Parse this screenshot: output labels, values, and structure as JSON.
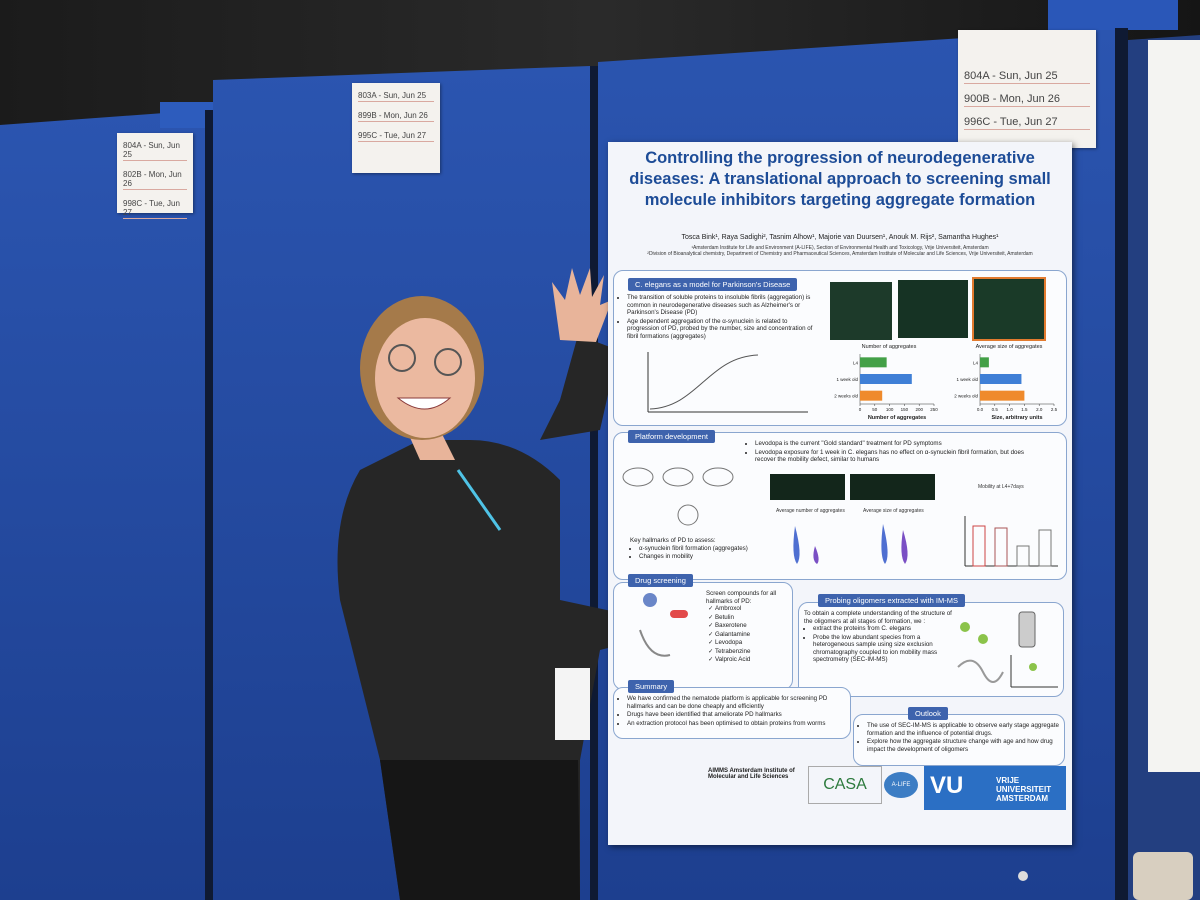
{
  "schedule_notes": [
    [
      "804A - Sun, Jun 25",
      "802B - Mon, Jun 26",
      "998C - Tue, Jun 27"
    ],
    [
      "803A - Sun, Jun 25",
      "899B - Mon, Jun 26",
      "995C - Tue, Jun 27"
    ],
    [
      "804A - Sun, Jun 25",
      "900B - Mon, Jun 26",
      "996C - Tue, Jun 27"
    ]
  ],
  "poster": {
    "title": "Controlling the progression of neurodegenerative diseases: A translational approach to screening small molecule inhibitors targeting aggregate formation",
    "authors": "Tosca Bink¹, Raya Sadighi², Tasnim Alhow¹, Majorie van Duursen¹, Anouk M. Rijs², Samantha Hughes¹",
    "affiliations": [
      "¹Amsterdam Institute for Life and Environment (A-LIFE), Section of Environmental Health and Toxicology, Vrije Universiteit, Amsterdam",
      "²Division of Bioanalytical chemistry, Department of Chemistry and Pharmaceutical Sciences, Amsterdam Institute of Molecular and Life Sciences, Vrije Universiteit, Amsterdam"
    ],
    "sections": [
      {
        "heading": "C. elegans as a model for Parkinson's Disease",
        "items": [
          "The transition of soluble proteins to insoluble fibrils (aggregation) is common in neurodegenerative diseases such as Alzheimer's or Parkinson's Disease (PD)",
          "Age dependent aggregation of the α-synuclein is related to progression of PD, probed by the number, size and concentration of fibril formations (aggregates)"
        ]
      },
      {
        "heading": "Platform development",
        "items": [
          "Levodopa is the current \"Gold standard\" treatment for PD symptoms",
          "Levodopa exposure for 1 week in C. elegans has no effect on α-synuclein fibril formation, but does recover the mobility defect, similar to humans"
        ],
        "intro": "Key hallmarks of PD to assess:",
        "hallmarks": [
          "α-synuclein fibril formation (aggregates)",
          "Changes in mobility"
        ],
        "plot_labels": [
          "Average number of aggregates",
          "Average size of aggregates",
          "Mobility at L4+7days"
        ]
      },
      {
        "heading": "Drug screening",
        "intro": "Screen compounds for all hallmarks of PD:",
        "items": [
          "Ambroxol",
          "Betulin",
          "Baxerotene",
          "Galantamine",
          "Levodopa",
          "Tetrabenzine",
          "Valproic Acid"
        ]
      },
      {
        "heading": "Probing oligomers extracted with IM-MS",
        "intro": "To obtain a complete understanding of the structure of the oligomers at all stages of formation, we :",
        "items": [
          "extract the proteins from C. elegans",
          "Probe the low abundant species from a heterogeneous sample using size exclusion chromatography coupled to ion mobility mass spectrometry (SEC-IM-MS)"
        ]
      },
      {
        "heading": "Summary",
        "items": [
          "We have confirmed the nematode platform is applicable for screening PD hallmarks and can be done cheaply and efficiently",
          "Drugs have been identified that ameliorate PD hallmarks",
          "An extraction protocol has been optimised to obtain proteins from worms"
        ]
      },
      {
        "heading": "Outlook",
        "items": [
          "The use of SEC-IM-MS is applicable to observe early stage aggregate formation and the influence of potential drugs.",
          "Explore how the aggregate structure change with age and how drug impact the development of oligomers"
        ]
      }
    ],
    "charts": [
      {
        "type": "bar",
        "title": "Number of aggregates",
        "categories": [
          "L4",
          "1 week old",
          "2 weeks old"
        ],
        "values": [
          90,
          175,
          75
        ],
        "colors": [
          "#43a047",
          "#3f7fd6",
          "#ef8a2c"
        ],
        "xlim": [
          0,
          250
        ],
        "xticks": [
          0,
          50,
          100,
          150,
          200,
          250
        ],
        "xlabel": "Number of aggregates"
      },
      {
        "type": "bar",
        "title": "Average size of aggregates",
        "categories": [
          "L4",
          "1 week old",
          "2 weeks old"
        ],
        "values": [
          0.3,
          1.4,
          1.5
        ],
        "colors": [
          "#43a047",
          "#3f7fd6",
          "#ef8a2c"
        ],
        "xlim": [
          0,
          2.5
        ],
        "xticks": [
          {
            "value": 0,
            "label": "0.0"
          },
          {
            "value": 0.5,
            "label": "0.5"
          },
          {
            "value": 1,
            "label": "1.0"
          },
          {
            "value": 1.5,
            "label": "1.5"
          },
          {
            "value": 2,
            "label": "2.0"
          },
          {
            "value": 2.5,
            "label": "2.5"
          }
        ],
        "xlabel": "Size, arbitrary units"
      }
    ],
    "logos": [
      "AIMMS Amsterdam Institute of Molecular and Life Sciences",
      "CASA",
      "A-LIFE",
      "VU",
      "VRIJE UNIVERSITEIT AMSTERDAM"
    ]
  }
}
